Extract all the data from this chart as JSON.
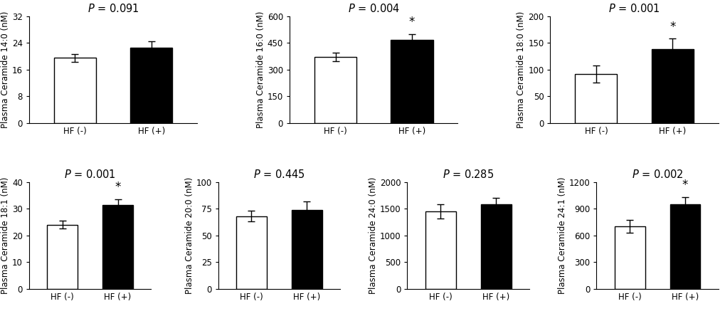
{
  "panels": [
    {
      "title": "P = 0.091",
      "ylabel": "Plasma Ceramide 14:0 (nM)",
      "ylim": [
        0,
        32
      ],
      "yticks": [
        0,
        8,
        16,
        24,
        32
      ],
      "values": [
        19.5,
        22.5
      ],
      "errors": [
        1.2,
        2.0
      ],
      "significant": [
        false,
        false
      ],
      "colors": [
        "white",
        "black"
      ]
    },
    {
      "title": "P = 0.004",
      "ylabel": "Plasma Ceramide 16:0 (nM)",
      "ylim": [
        0,
        600
      ],
      "yticks": [
        0,
        150,
        300,
        450,
        600
      ],
      "values": [
        370,
        465
      ],
      "errors": [
        25,
        35
      ],
      "significant": [
        false,
        true
      ],
      "colors": [
        "white",
        "black"
      ]
    },
    {
      "title": "P = 0.001",
      "ylabel": "Plasma Ceramide 18:0 (nM)",
      "ylim": [
        0,
        200
      ],
      "yticks": [
        0,
        50,
        100,
        150,
        200
      ],
      "values": [
        92,
        138
      ],
      "errors": [
        16,
        20
      ],
      "significant": [
        false,
        true
      ],
      "colors": [
        "white",
        "black"
      ]
    },
    {
      "title": "P = 0.001",
      "ylabel": "Plasma Ceramide 18:1 (nM)",
      "ylim": [
        0,
        40
      ],
      "yticks": [
        0,
        10,
        20,
        30,
        40
      ],
      "values": [
        24,
        31.5
      ],
      "errors": [
        1.5,
        2.0
      ],
      "significant": [
        false,
        true
      ],
      "colors": [
        "white",
        "black"
      ]
    },
    {
      "title": "P = 0.445",
      "ylabel": "Plasma Ceramide 20:0 (nM)",
      "ylim": [
        0,
        100
      ],
      "yticks": [
        0,
        25,
        50,
        75,
        100
      ],
      "values": [
        68,
        74
      ],
      "errors": [
        5,
        8
      ],
      "significant": [
        false,
        false
      ],
      "colors": [
        "white",
        "black"
      ]
    },
    {
      "title": "P = 0.285",
      "ylabel": "Plasma Ceramide 24:0 (nM)",
      "ylim": [
        0,
        2000
      ],
      "yticks": [
        0,
        500,
        1000,
        1500,
        2000
      ],
      "values": [
        1450,
        1580
      ],
      "errors": [
        130,
        120
      ],
      "significant": [
        false,
        false
      ],
      "colors": [
        "white",
        "black"
      ]
    },
    {
      "title": "P = 0.002",
      "ylabel": "Plasma Ceramide 24:1 (nM)",
      "ylim": [
        0,
        1200
      ],
      "yticks": [
        0,
        300,
        600,
        900,
        1200
      ],
      "values": [
        700,
        950
      ],
      "errors": [
        70,
        80
      ],
      "significant": [
        false,
        true
      ],
      "colors": [
        "white",
        "black"
      ]
    }
  ],
  "xlabels": [
    "HF (-)",
    "HF (+)"
  ],
  "bar_width": 0.55,
  "background_color": "#ffffff",
  "text_color": "#000000",
  "fontsize_title": 10.5,
  "fontsize_label": 8.5,
  "fontsize_tick": 8.5,
  "fontsize_star": 12
}
